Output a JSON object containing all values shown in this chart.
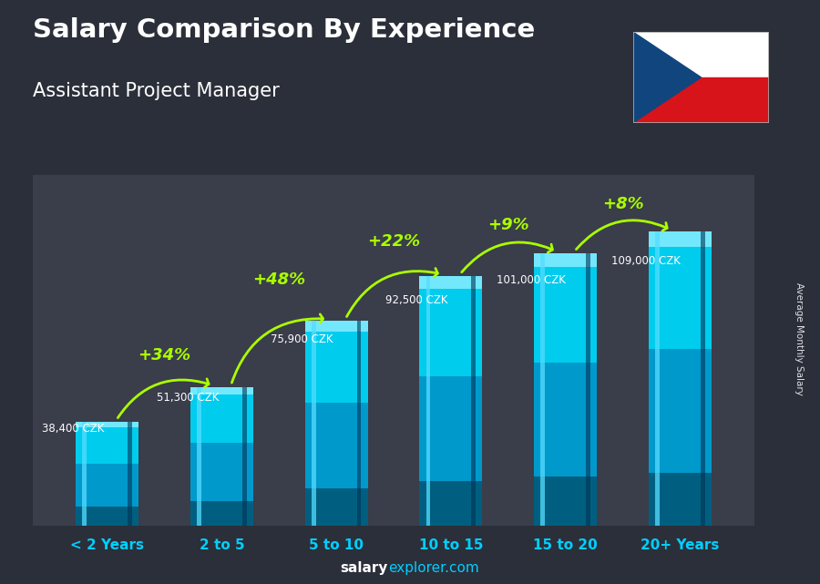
{
  "title_line1": "Salary Comparison By Experience",
  "title_line2": "Assistant Project Manager",
  "categories": [
    "< 2 Years",
    "2 to 5",
    "5 to 10",
    "10 to 15",
    "15 to 20",
    "20+ Years"
  ],
  "values": [
    38400,
    51300,
    75900,
    92500,
    101000,
    109000
  ],
  "value_labels": [
    "38,400 CZK",
    "51,300 CZK",
    "75,900 CZK",
    "92,500 CZK",
    "101,000 CZK",
    "109,000 CZK"
  ],
  "pct_labels": [
    "+34%",
    "+48%",
    "+22%",
    "+9%",
    "+8%"
  ],
  "bar_color_top": "#00d4ff",
  "text_color_white": "#ffffff",
  "text_color_cyan": "#00cfff",
  "text_color_green": "#aaff00",
  "side_label": "Average Monthly Salary",
  "ylim_max": 130000,
  "bg_color": "#2b2f3a"
}
